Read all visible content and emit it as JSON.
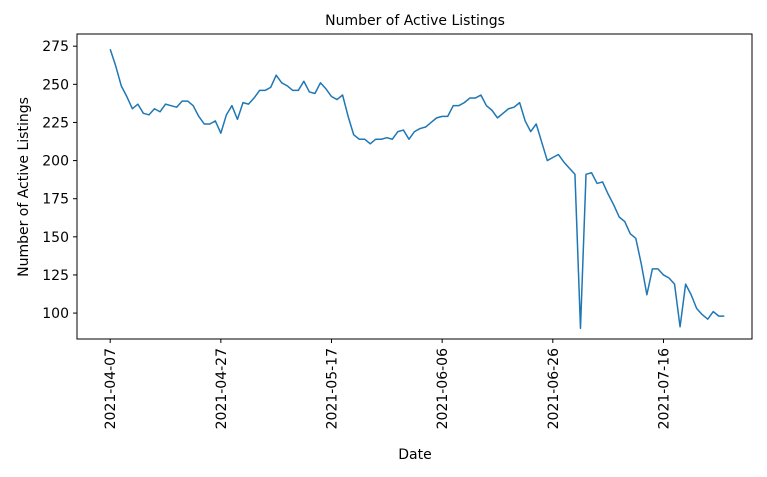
{
  "chart_data": {
    "type": "line",
    "title": "Number of Active Listings",
    "xlabel": "Date",
    "ylabel": "Number of Active Listings",
    "ylim": [
      83,
      283
    ],
    "xlim": [
      "2021-04-01",
      "2021-08-01"
    ],
    "grid": false,
    "line_color": "#1f77b4",
    "x_ticks": [
      "2021-04-07",
      "2021-04-27",
      "2021-05-17",
      "2021-06-06",
      "2021-06-26",
      "2021-07-16"
    ],
    "y_ticks": [
      100,
      125,
      150,
      175,
      200,
      225,
      250,
      275
    ],
    "series": [
      {
        "points": [
          [
            "2021-04-07",
            273
          ],
          [
            "2021-04-08",
            262
          ],
          [
            "2021-04-09",
            249
          ],
          [
            "2021-04-10",
            242
          ],
          [
            "2021-04-11",
            234
          ],
          [
            "2021-04-12",
            237
          ],
          [
            "2021-04-13",
            231
          ],
          [
            "2021-04-14",
            230
          ],
          [
            "2021-04-15",
            234
          ],
          [
            "2021-04-16",
            232
          ],
          [
            "2021-04-17",
            237
          ],
          [
            "2021-04-18",
            236
          ],
          [
            "2021-04-19",
            235
          ],
          [
            "2021-04-20",
            239
          ],
          [
            "2021-04-21",
            239
          ],
          [
            "2021-04-22",
            236
          ],
          [
            "2021-04-23",
            229
          ],
          [
            "2021-04-24",
            224
          ],
          [
            "2021-04-25",
            224
          ],
          [
            "2021-04-26",
            226
          ],
          [
            "2021-04-27",
            218
          ],
          [
            "2021-04-28",
            230
          ],
          [
            "2021-04-29",
            236
          ],
          [
            "2021-04-30",
            227
          ],
          [
            "2021-05-01",
            238
          ],
          [
            "2021-05-02",
            237
          ],
          [
            "2021-05-03",
            241
          ],
          [
            "2021-05-04",
            246
          ],
          [
            "2021-05-05",
            246
          ],
          [
            "2021-05-06",
            248
          ],
          [
            "2021-05-07",
            256
          ],
          [
            "2021-05-08",
            251
          ],
          [
            "2021-05-09",
            249
          ],
          [
            "2021-05-10",
            246
          ],
          [
            "2021-05-11",
            246
          ],
          [
            "2021-05-12",
            252
          ],
          [
            "2021-05-13",
            245
          ],
          [
            "2021-05-14",
            244
          ],
          [
            "2021-05-15",
            251
          ],
          [
            "2021-05-16",
            247
          ],
          [
            "2021-05-17",
            242
          ],
          [
            "2021-05-18",
            240
          ],
          [
            "2021-05-19",
            243
          ],
          [
            "2021-05-20",
            229
          ],
          [
            "2021-05-21",
            217
          ],
          [
            "2021-05-22",
            214
          ],
          [
            "2021-05-23",
            214
          ],
          [
            "2021-05-24",
            211
          ],
          [
            "2021-05-25",
            214
          ],
          [
            "2021-05-26",
            214
          ],
          [
            "2021-05-27",
            215
          ],
          [
            "2021-05-28",
            214
          ],
          [
            "2021-05-29",
            219
          ],
          [
            "2021-05-30",
            220
          ],
          [
            "2021-05-31",
            214
          ],
          [
            "2021-06-01",
            219
          ],
          [
            "2021-06-02",
            221
          ],
          [
            "2021-06-03",
            222
          ],
          [
            "2021-06-04",
            225
          ],
          [
            "2021-06-05",
            228
          ],
          [
            "2021-06-06",
            229
          ],
          [
            "2021-06-07",
            229
          ],
          [
            "2021-06-08",
            236
          ],
          [
            "2021-06-09",
            236
          ],
          [
            "2021-06-10",
            238
          ],
          [
            "2021-06-11",
            241
          ],
          [
            "2021-06-12",
            241
          ],
          [
            "2021-06-13",
            243
          ],
          [
            "2021-06-14",
            236
          ],
          [
            "2021-06-15",
            233
          ],
          [
            "2021-06-16",
            228
          ],
          [
            "2021-06-17",
            231
          ],
          [
            "2021-06-18",
            234
          ],
          [
            "2021-06-19",
            235
          ],
          [
            "2021-06-20",
            238
          ],
          [
            "2021-06-21",
            226
          ],
          [
            "2021-06-22",
            219
          ],
          [
            "2021-06-23",
            224
          ],
          [
            "2021-06-24",
            212
          ],
          [
            "2021-06-25",
            200
          ],
          [
            "2021-06-26",
            202
          ],
          [
            "2021-06-27",
            204
          ],
          [
            "2021-06-28",
            199
          ],
          [
            "2021-06-29",
            195
          ],
          [
            "2021-06-30",
            191
          ],
          [
            "2021-07-01",
            90
          ],
          [
            "2021-07-02",
            191
          ],
          [
            "2021-07-03",
            192
          ],
          [
            "2021-07-04",
            185
          ],
          [
            "2021-07-05",
            186
          ],
          [
            "2021-07-06",
            178
          ],
          [
            "2021-07-07",
            171
          ],
          [
            "2021-07-08",
            163
          ],
          [
            "2021-07-09",
            160
          ],
          [
            "2021-07-10",
            152
          ],
          [
            "2021-07-11",
            149
          ],
          [
            "2021-07-12",
            132
          ],
          [
            "2021-07-13",
            112
          ],
          [
            "2021-07-14",
            129
          ],
          [
            "2021-07-15",
            129
          ],
          [
            "2021-07-16",
            125
          ],
          [
            "2021-07-17",
            123
          ],
          [
            "2021-07-18",
            119
          ],
          [
            "2021-07-19",
            91
          ],
          [
            "2021-07-20",
            119
          ],
          [
            "2021-07-21",
            112
          ],
          [
            "2021-07-22",
            103
          ],
          [
            "2021-07-23",
            99
          ],
          [
            "2021-07-24",
            96
          ],
          [
            "2021-07-25",
            101
          ],
          [
            "2021-07-26",
            98
          ],
          [
            "2021-07-27",
            98
          ]
        ]
      }
    ]
  }
}
